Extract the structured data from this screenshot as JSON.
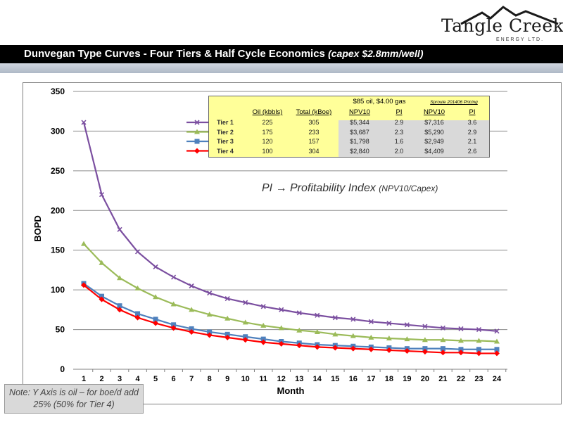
{
  "logo": {
    "name": "Tangle Creek",
    "sub": "ENERGY LTD."
  },
  "title": {
    "main": "Dunvegan Type Curves - Four Tiers & Half Cycle Economics ",
    "sub": "(capex $2.8mm/well)"
  },
  "note": "Note:  Y Axis is oil – for boe/d add 25% (50% for Tier 4)",
  "pi_note": {
    "main": "PI → Profitability Index ",
    "small": "(NPV10/Capex)"
  },
  "table": {
    "group1": "$85 oil, $4.00 gas",
    "group2": "Sproule 201406 Pricing",
    "headers": [
      "Oil (kbbls)",
      "Total (kBoe)",
      "NPV10",
      "PI",
      "NPV10",
      "PI"
    ],
    "rows": [
      {
        "tier": "Tier 1",
        "oil": "225",
        "total": "305",
        "npv1": "$5,344",
        "pi1": "2.9",
        "npv2": "$7,316",
        "pi2": "3.6"
      },
      {
        "tier": "Tier 2",
        "oil": "175",
        "total": "233",
        "npv1": "$3,687",
        "pi1": "2.3",
        "npv2": "$5,290",
        "pi2": "2.9"
      },
      {
        "tier": "Tier 3",
        "oil": "120",
        "total": "157",
        "npv1": "$1,798",
        "pi1": "1.6",
        "npv2": "$2,949",
        "pi2": "2.1"
      },
      {
        "tier": "Tier 4",
        "oil": "100",
        "total": "304",
        "npv1": "$2,840",
        "pi1": "2.0",
        "npv2": "$4,409",
        "pi2": "2.6"
      }
    ]
  },
  "chart_data": {
    "type": "line",
    "xlabel": "Month",
    "ylabel": "BOPD",
    "ylim": [
      0,
      350
    ],
    "yticks": [
      0,
      50,
      100,
      150,
      200,
      250,
      300,
      350
    ],
    "x": [
      1,
      2,
      3,
      4,
      5,
      6,
      7,
      8,
      9,
      10,
      11,
      12,
      13,
      14,
      15,
      16,
      17,
      18,
      19,
      20,
      21,
      22,
      23,
      24
    ],
    "grid": true,
    "series": [
      {
        "name": "Tier 1",
        "color": "#7b4fa0",
        "marker": "x",
        "values": [
          311,
          220,
          176,
          148,
          129,
          116,
          105,
          96,
          89,
          84,
          79,
          75,
          71,
          68,
          65,
          63,
          60,
          58,
          56,
          54,
          52,
          51,
          50,
          48
        ]
      },
      {
        "name": "Tier 2",
        "color": "#9bbb59",
        "marker": "triangle",
        "values": [
          158,
          134,
          115,
          102,
          91,
          82,
          75,
          69,
          64,
          59,
          55,
          52,
          49,
          47,
          44,
          42,
          40,
          39,
          38,
          37,
          37,
          36,
          36,
          35
        ]
      },
      {
        "name": "Tier 3",
        "color": "#4f81bd",
        "marker": "square",
        "values": [
          108,
          92,
          80,
          70,
          63,
          56,
          51,
          47,
          44,
          41,
          38,
          35,
          33,
          31,
          30,
          29,
          28,
          27,
          26,
          26,
          26,
          25,
          25,
          25
        ]
      },
      {
        "name": "Tier 4",
        "color": "#ff0000",
        "marker": "diamond",
        "values": [
          106,
          88,
          75,
          65,
          58,
          52,
          47,
          43,
          40,
          37,
          34,
          32,
          30,
          28,
          27,
          26,
          25,
          24,
          23,
          22,
          21,
          21,
          20,
          20
        ]
      }
    ]
  }
}
